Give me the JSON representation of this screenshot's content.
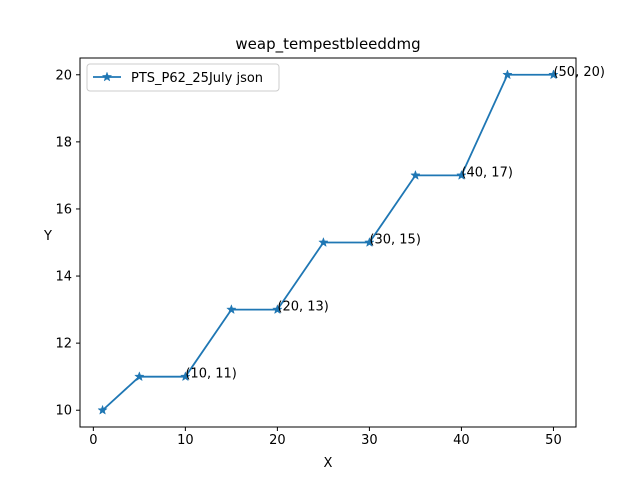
{
  "chart_data": {
    "type": "line",
    "title": "weap_tempestbleeddmg",
    "xlabel": "X",
    "ylabel": "Y",
    "xlim": [
      -1.45,
      52.45
    ],
    "ylim": [
      9.5,
      20.5
    ],
    "xticks": [
      0,
      10,
      20,
      30,
      40,
      50
    ],
    "yticks": [
      10,
      12,
      14,
      16,
      18,
      20
    ],
    "grid": false,
    "legend_position": "upper-left",
    "series": [
      {
        "name": "PTS_P62_25July json",
        "color": "#1f77b4",
        "marker": "star",
        "x": [
          1,
          5,
          10,
          15,
          20,
          25,
          30,
          35,
          40,
          45,
          50
        ],
        "y": [
          10,
          11,
          11,
          13,
          13,
          15,
          15,
          17,
          17,
          20,
          20
        ]
      }
    ],
    "annotations": [
      {
        "x": 10,
        "y": 11,
        "text": "(10, 11)"
      },
      {
        "x": 20,
        "y": 13,
        "text": "(20, 13)"
      },
      {
        "x": 30,
        "y": 15,
        "text": "(30, 15)"
      },
      {
        "x": 40,
        "y": 17,
        "text": "(40, 17)"
      },
      {
        "x": 50,
        "y": 20,
        "text": "(50, 20)"
      }
    ]
  }
}
